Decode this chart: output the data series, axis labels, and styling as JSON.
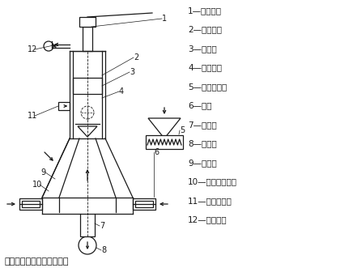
{
  "title": "对喷式气流磨的结构示意图",
  "legend": [
    "1—传动装置",
    "2—分级转子",
    "3—分级室",
    "4—物料入口",
    "5—螺旋加料器",
    "6—喷嘴",
    "7—混合管",
    "8—粉碎室",
    "9—上升管",
    "10—粗颗粒返回管",
    "11—二次风入口",
    "12—产品出口"
  ],
  "bg_color": "#ffffff",
  "line_color": "#1a1a1a",
  "font_size_legend": 7.5,
  "font_size_title": 8,
  "font_size_label": 7
}
